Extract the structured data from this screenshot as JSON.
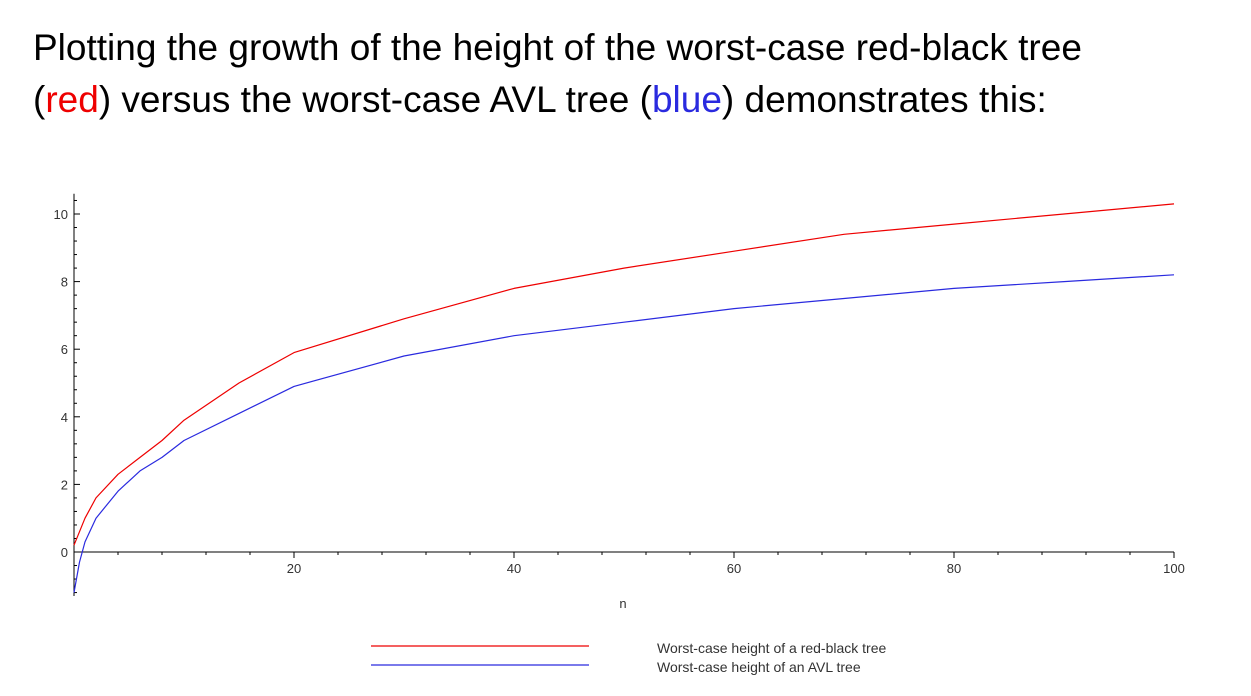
{
  "title": {
    "line1": "Plotting the growth of the height of the worst-case red-black tree",
    "line2_open1": "(",
    "line2_red": "red",
    "line2_mid": ") versus the worst-case AVL tree (",
    "line2_blue": "blue",
    "line2_end": ") demonstrates this:"
  },
  "colors": {
    "red": "#ee0000",
    "blue": "#2a2adf",
    "axis": "#000000"
  },
  "chart_data": {
    "type": "line",
    "title": "",
    "xlabel": "n",
    "ylabel": "",
    "xlim": [
      0,
      100
    ],
    "ylim": [
      -1.3,
      10.6
    ],
    "x_ticks": [
      20,
      40,
      60,
      80,
      100
    ],
    "x_tick_labels": [
      "20",
      "40",
      "60",
      "80",
      "100"
    ],
    "y_ticks": [
      0,
      2,
      4,
      6,
      8,
      10
    ],
    "y_tick_labels": [
      "0",
      "2",
      "4",
      "6",
      "8",
      "10"
    ],
    "grid": false,
    "legend_position": "bottom",
    "series": [
      {
        "name": "Worst-case height of a red-black tree",
        "color": "#ee0000",
        "x": [
          0,
          1,
          2,
          4,
          6,
          8,
          10,
          15,
          20,
          30,
          40,
          50,
          60,
          70,
          80,
          90,
          100
        ],
        "y": [
          0.2,
          1.0,
          1.6,
          2.3,
          2.8,
          3.3,
          3.9,
          5.0,
          5.9,
          6.9,
          7.8,
          8.4,
          8.9,
          9.4,
          9.7,
          10.0,
          10.3
        ]
      },
      {
        "name": "Worst-case height of an AVL tree",
        "color": "#2a2adf",
        "x": [
          0,
          0.5,
          1,
          2,
          4,
          6,
          8,
          10,
          15,
          20,
          30,
          40,
          50,
          60,
          70,
          80,
          90,
          100
        ],
        "y": [
          -1.2,
          -0.3,
          0.3,
          1.0,
          1.8,
          2.4,
          2.8,
          3.3,
          4.1,
          4.9,
          5.8,
          6.4,
          6.8,
          7.2,
          7.5,
          7.8,
          8.0,
          8.2
        ]
      }
    ]
  }
}
